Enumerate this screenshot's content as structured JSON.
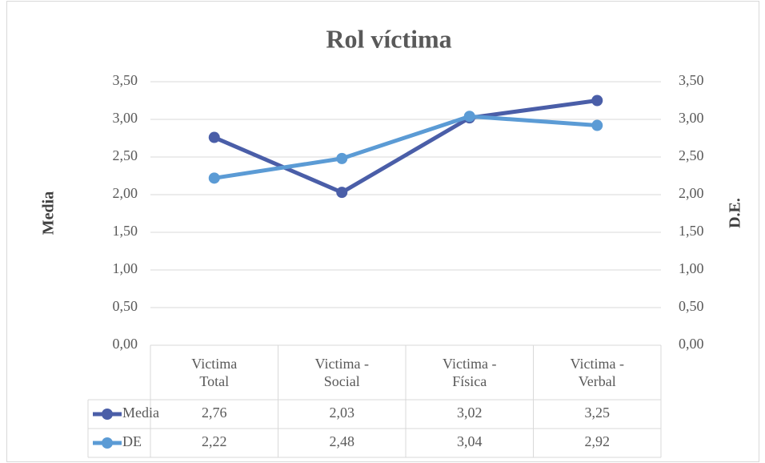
{
  "chart_data": {
    "type": "line",
    "title": "Rol víctima",
    "y_label": "Media",
    "y2_label": "D.E.",
    "categories": [
      "Victima Total",
      "Victima - Social",
      "Victima - Física",
      "Victima - Verbal"
    ],
    "series": [
      {
        "name": "Media",
        "color": "#4a5ea8",
        "values": [
          2.76,
          2.03,
          3.02,
          3.25
        ],
        "value_labels": [
          "2,76",
          "2,03",
          "3,02",
          "3,25"
        ]
      },
      {
        "name": "DE",
        "color": "#5b9bd5",
        "axis": "y2",
        "values": [
          2.22,
          2.48,
          3.04,
          2.92
        ],
        "value_labels": [
          "2,22",
          "2,48",
          "3,04",
          "2,92"
        ]
      }
    ],
    "ylim": [
      0,
      3.5
    ],
    "yticks": [
      {
        "value": 0,
        "label": "0,00"
      },
      {
        "value": 0.5,
        "label": "0,50"
      },
      {
        "value": 1,
        "label": "1,00"
      },
      {
        "value": 1.5,
        "label": "1,50"
      },
      {
        "value": 2,
        "label": "2,00"
      },
      {
        "value": 2.5,
        "label": "2,50"
      },
      {
        "value": 3,
        "label": "3,00"
      },
      {
        "value": 3.5,
        "label": "3,50"
      }
    ],
    "y2lim": [
      0,
      3.5
    ],
    "y2ticks": [
      {
        "value": 0,
        "label": "0,00"
      },
      {
        "value": 0.5,
        "label": "0,50"
      },
      {
        "value": 1,
        "label": "1,00"
      },
      {
        "value": 1.5,
        "label": "1,50"
      },
      {
        "value": 2,
        "label": "2,00"
      },
      {
        "value": 2.5,
        "label": "2,50"
      },
      {
        "value": 3,
        "label": "3,00"
      },
      {
        "value": 3.5,
        "label": "3,50"
      }
    ],
    "grid": true,
    "data_table": true
  }
}
